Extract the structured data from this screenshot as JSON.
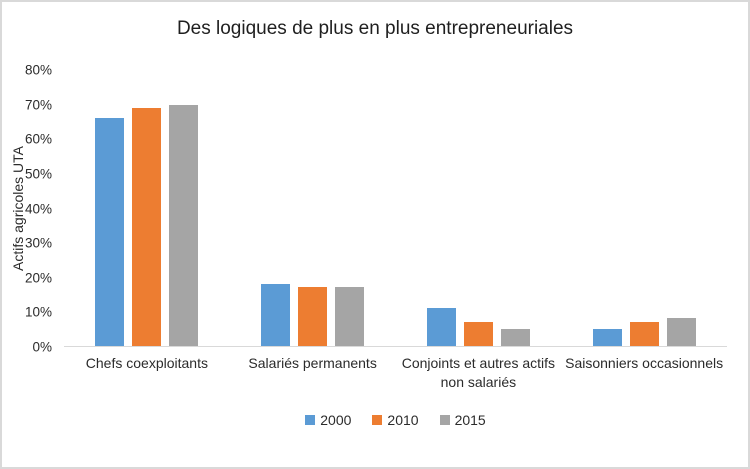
{
  "chart_data": {
    "type": "bar",
    "title": "Des logiques de plus en plus entrepreneuriales",
    "xlabel": "",
    "ylabel": "Actifs agricoles UTA",
    "ylim": [
      0,
      80
    ],
    "yticks": [
      "0%",
      "10%",
      "20%",
      "30%",
      "40%",
      "50%",
      "60%",
      "70%",
      "80%"
    ],
    "grid": false,
    "legend_position": "bottom",
    "categories": [
      "Chefs coexploitants",
      "Salariés permanents",
      "Conjoints et autres actifs\nnon salariés",
      "Saisonniers occasionnels"
    ],
    "series": [
      {
        "name": "2000",
        "color": "#5B9BD5",
        "values": [
          66,
          18,
          11,
          5
        ]
      },
      {
        "name": "2010",
        "color": "#ED7D31",
        "values": [
          69,
          17,
          7,
          7
        ]
      },
      {
        "name": "2015",
        "color": "#A5A5A5",
        "values": [
          70,
          17,
          5,
          8
        ]
      }
    ]
  },
  "colors": {
    "axis_line": "#D9D9D9",
    "chart_border": "#D9D9D9",
    "text": "#2B2B2B"
  }
}
